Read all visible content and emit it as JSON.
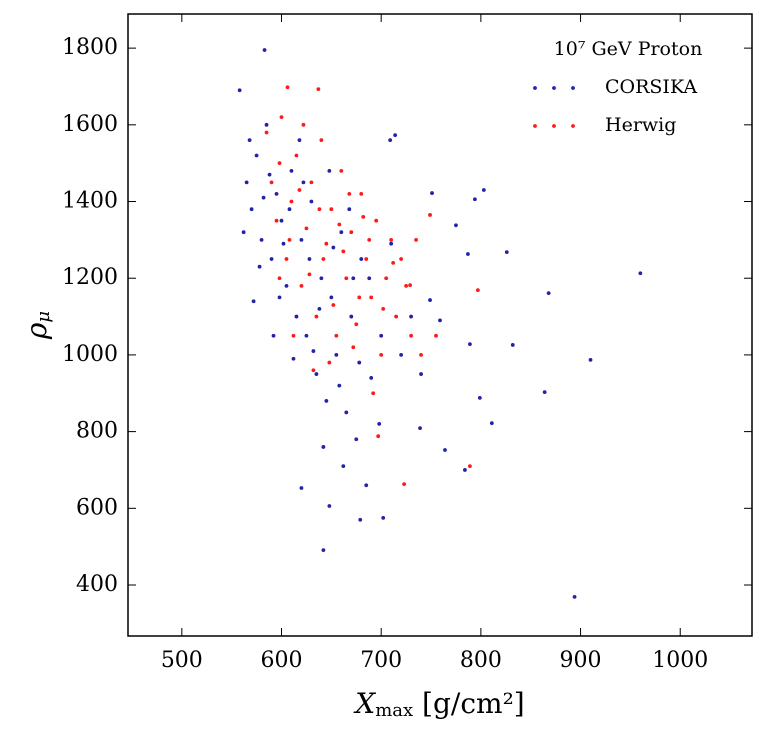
{
  "chart_data": {
    "type": "scatter",
    "legend_title": "10⁷ GeV Proton",
    "x_label": {
      "main": "X",
      "sub": "max",
      "rest": " [g/cm²]"
    },
    "y_label": {
      "main": "ρ",
      "sub": "μ"
    },
    "xlim": [
      446,
      1072
    ],
    "ylim": [
      267,
      1889
    ],
    "xticks": [
      500,
      600,
      700,
      800,
      900,
      1000
    ],
    "yticks": [
      400,
      600,
      800,
      1000,
      1200,
      1400,
      1600,
      1800
    ],
    "legend_position": "upper right",
    "series": [
      {
        "name": "CORSIKA",
        "color": "#2323a8",
        "x": [
          583,
          960,
          894,
          864,
          910,
          868,
          832,
          826,
          811,
          803,
          794,
          799,
          789,
          784,
          642,
          702,
          679,
          648,
          620,
          558,
          764,
          739,
          714,
          709,
          749,
          759,
          787,
          775,
          751,
          565,
          570,
          575,
          580,
          585,
          590,
          595,
          600,
          605,
          610,
          615,
          620,
          625,
          630,
          635,
          640,
          645,
          650,
          655,
          660,
          665,
          670,
          675,
          680,
          690,
          700,
          562,
          568,
          578,
          588,
          598,
          608,
          618,
          628,
          638,
          648,
          658,
          668,
          678,
          688,
          698,
          572,
          582,
          592,
          602,
          612,
          622,
          632,
          642,
          652,
          662,
          672,
          685,
          710,
          720,
          730,
          740
        ],
        "y": [
          1795,
          1213,
          369,
          903,
          987,
          1161,
          1026,
          1268,
          822,
          1430,
          1406,
          888,
          1028,
          700,
          491,
          575,
          570,
          606,
          653,
          1690,
          752,
          809,
          1573,
          1560,
          1143,
          1090,
          1263,
          1338,
          1422,
          1450,
          1380,
          1520,
          1300,
          1600,
          1250,
          1420,
          1350,
          1180,
          1480,
          1100,
          1300,
          1050,
          1400,
          950,
          1200,
          880,
          1150,
          1000,
          1320,
          850,
          1100,
          780,
          1250,
          940,
          1050,
          1320,
          1560,
          1230,
          1470,
          1150,
          1380,
          1560,
          1250,
          1120,
          1480,
          920,
          1380,
          980,
          1200,
          820,
          1140,
          1410,
          1050,
          1290,
          990,
          1450,
          1010,
          760,
          1280,
          710,
          1200,
          660,
          1290,
          1000,
          1100,
          950
        ]
      },
      {
        "name": "Herwig",
        "color": "#ff1a1a",
        "x": [
          606,
          637,
          789,
          723,
          797,
          749,
          729,
          697,
          585,
          590,
          595,
          600,
          605,
          610,
          615,
          620,
          625,
          630,
          635,
          640,
          645,
          650,
          655,
          660,
          665,
          670,
          675,
          680,
          685,
          690,
          695,
          700,
          705,
          710,
          715,
          720,
          725,
          730,
          598,
          608,
          618,
          628,
          638,
          648,
          658,
          668,
          678,
          688,
          598,
          612,
          622,
          632,
          642,
          652,
          662,
          672,
          682,
          692,
          702,
          712,
          740,
          755,
          735
        ],
        "y": [
          1698,
          1693,
          710,
          663,
          1169,
          1365,
          1182,
          788,
          1580,
          1450,
          1350,
          1620,
          1250,
          1400,
          1520,
          1180,
          1330,
          1450,
          1100,
          1560,
          1290,
          1380,
          1050,
          1480,
          1200,
          1320,
          1080,
          1420,
          1250,
          1150,
          1350,
          1000,
          1200,
          1300,
          1100,
          1250,
          1180,
          1050,
          1500,
          1300,
          1430,
          1210,
          1380,
          980,
          1340,
          1420,
          1150,
          1300,
          1200,
          1050,
          1600,
          960,
          1250,
          1130,
          1270,
          1020,
          1360,
          900,
          1120,
          1240,
          1000,
          1050,
          1300
        ]
      }
    ]
  }
}
